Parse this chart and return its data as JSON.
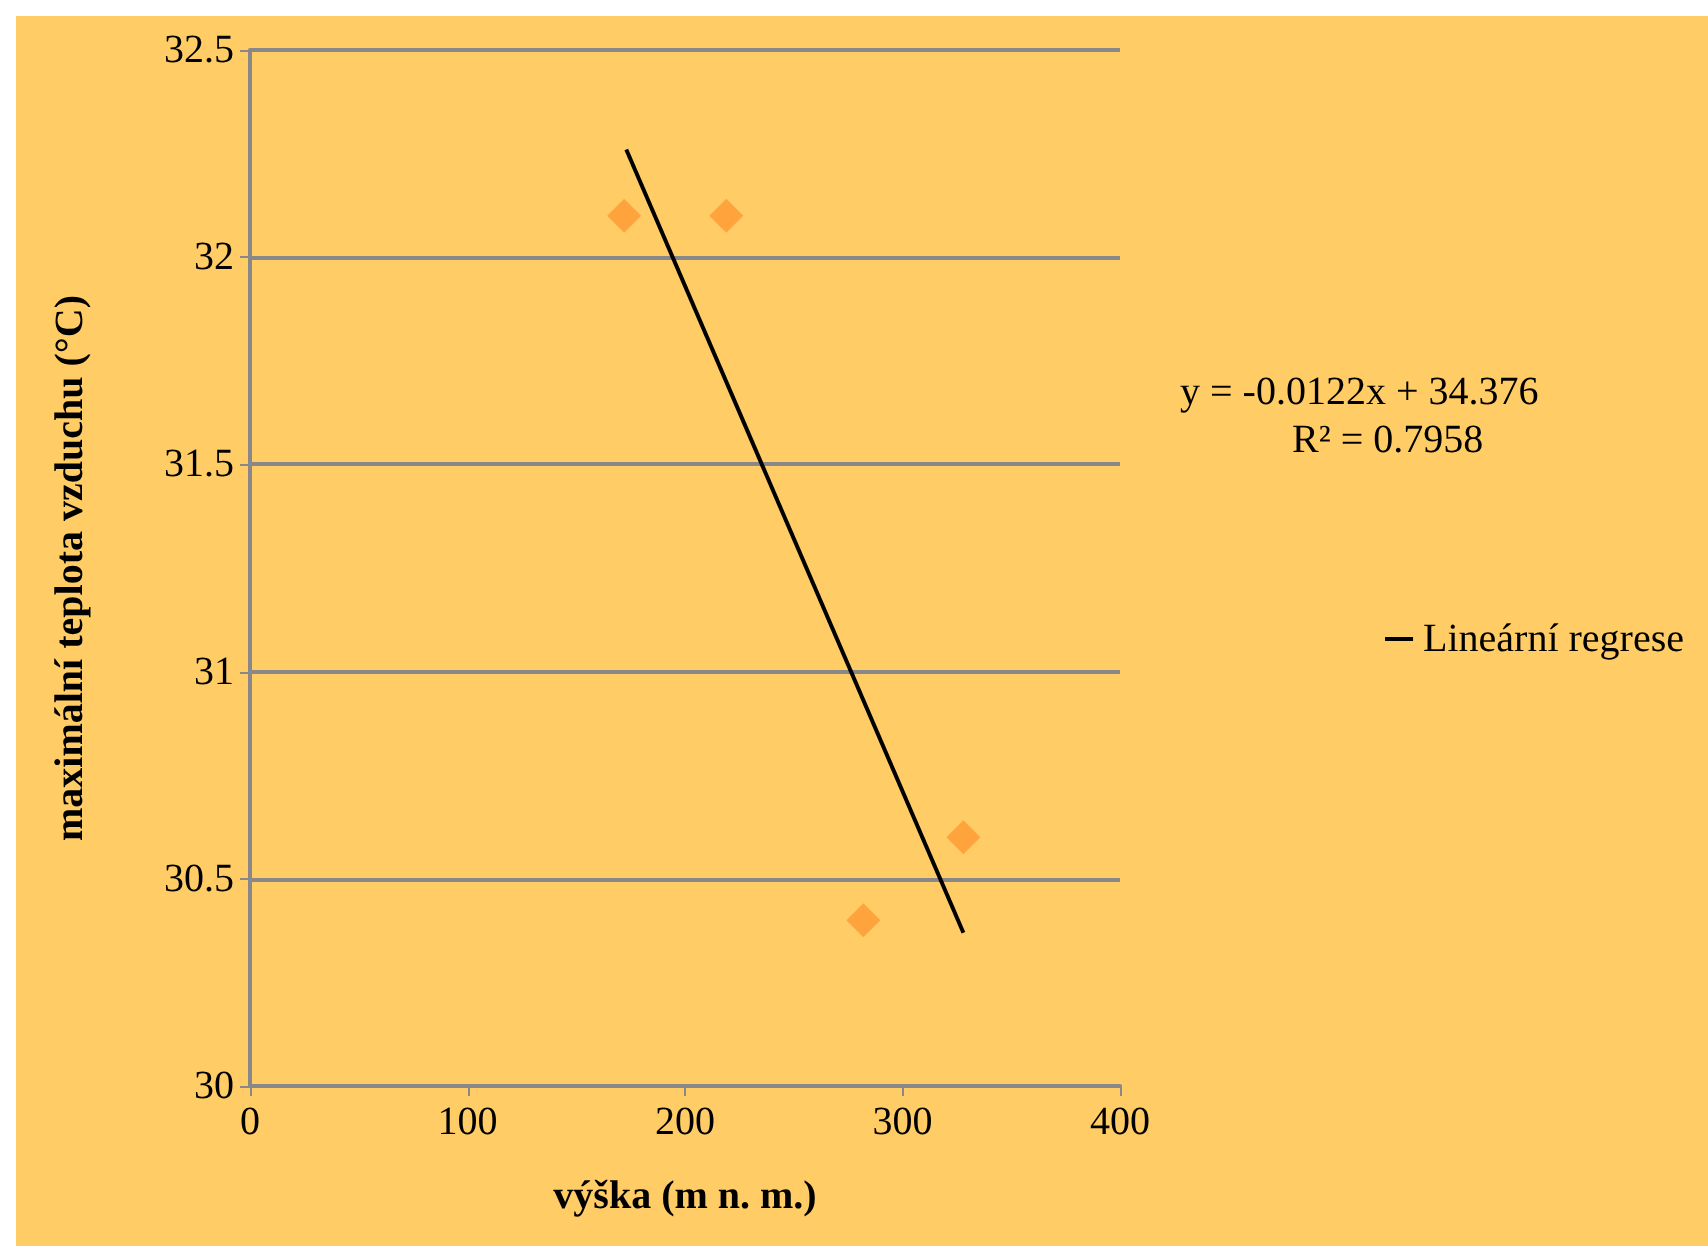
{
  "chart_data": {
    "type": "scatter",
    "xlabel": "výška (m n. m.)",
    "ylabel": "maximální teplota vzduchu (°C)",
    "xlim": [
      0,
      400
    ],
    "xticks": [
      0,
      100,
      200,
      300,
      400
    ],
    "ylim": [
      30,
      32.5
    ],
    "yticks": [
      30,
      30.5,
      31,
      31.5,
      32,
      32.5
    ],
    "grid": "y",
    "legend": "right",
    "series": [
      {
        "color": "#ff9933",
        "marker": "diamond",
        "x": [
          172,
          219,
          282,
          328
        ],
        "values": [
          32.1,
          32.1,
          30.4,
          30.6
        ]
      },
      {
        "type": "line",
        "name": "Lineární regrese",
        "color": "#000000",
        "marker": "none",
        "x": [
          173,
          328
        ],
        "values": [
          32.26,
          30.37
        ]
      }
    ],
    "annotations": [
      "y = -0.0122x + 34.376",
      "R² = 0.7958"
    ]
  }
}
